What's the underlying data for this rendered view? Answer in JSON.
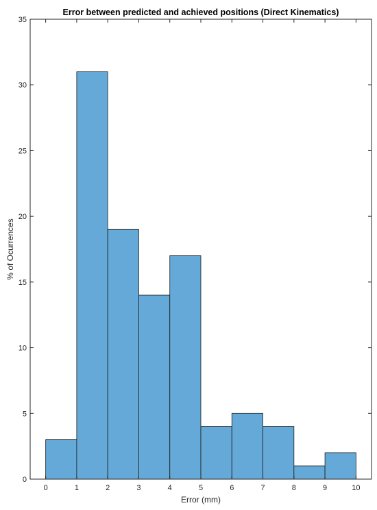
{
  "chart_data": {
    "type": "bar",
    "title": "Error between predicted and achieved positions (Direct Kinematics)",
    "xlabel": "Error (mm)",
    "ylabel": "% of Ocurrences",
    "bin_edges": [
      0,
      1,
      2,
      3,
      4,
      5,
      6,
      7,
      8,
      9,
      10
    ],
    "values": [
      3,
      31,
      19,
      14,
      17,
      4,
      5,
      4,
      1,
      2
    ],
    "xlim": [
      -0.5,
      10.5
    ],
    "ylim": [
      0,
      35
    ],
    "xticks": [
      "0",
      "1",
      "2",
      "3",
      "4",
      "5",
      "6",
      "7",
      "8",
      "9",
      "10"
    ],
    "yticks": [
      "0",
      "5",
      "10",
      "15",
      "20",
      "25",
      "30",
      "35"
    ],
    "bar_color": "#64a9d8",
    "grid": false,
    "legend": "none"
  }
}
